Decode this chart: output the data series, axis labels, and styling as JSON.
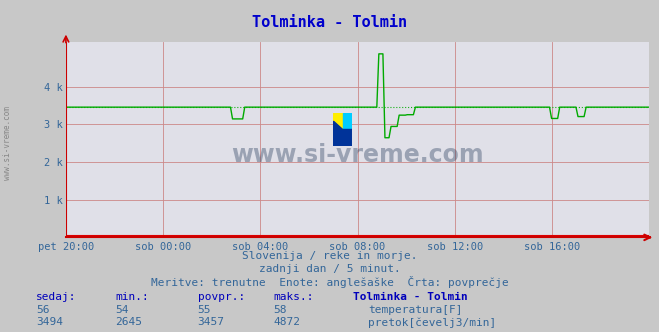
{
  "title": "Tolminka - Tolmin",
  "title_color": "#0000cc",
  "bg_color": "#c8c8c8",
  "plot_bg_color": "#e0e0e8",
  "grid_color": "#cc8888",
  "x_labels": [
    "pet 20:00",
    "sob 00:00",
    "sob 04:00",
    "sob 08:00",
    "sob 12:00",
    "sob 16:00"
  ],
  "x_ticks_norm": [
    0.0,
    0.1667,
    0.3333,
    0.5,
    0.6667,
    0.8333
  ],
  "y_ticks": [
    0,
    1000,
    2000,
    3000,
    4000
  ],
  "y_tick_labels": [
    "",
    "1 k",
    "2 k",
    "3 k",
    "4 k"
  ],
  "ylim": [
    0,
    5200
  ],
  "tick_color": "#336699",
  "temp_color": "#dd0000",
  "flow_color": "#00aa00",
  "flow_avg": 3457,
  "flow_min": 2645,
  "flow_max": 4872,
  "flow_current": 3494,
  "temp_current": 56,
  "temp_min": 54,
  "temp_avg": 55,
  "temp_max": 58,
  "watermark_text": "www.si-vreme.com",
  "sub_text1": "Slovenija / reke in morje.",
  "sub_text2": "zadnji dan / 5 minut.",
  "sub_text3": "Meritve: trenutne  Enote: anglešaške  Črta: povprečje",
  "station_label": "Tolminka - Tolmin",
  "legend_temp": "temperatura[F]",
  "legend_flow": "pretok[čevelj3/min]",
  "sedaj_label": "sedaj:",
  "min_label": "min.:",
  "povpr_label": "povpr.:",
  "maks_label": "maks.:",
  "left_watermark": "www.si-vreme.com"
}
